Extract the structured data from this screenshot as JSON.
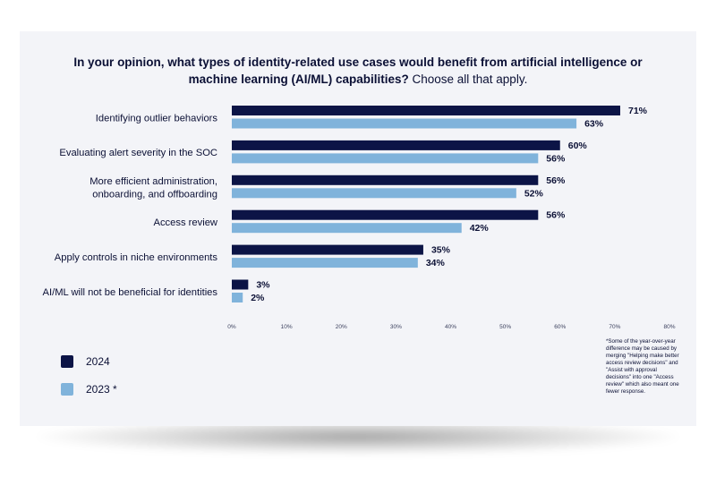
{
  "title_bold": "In your opinion, what types of identity-related use cases would benefit from artificial intelligence or machine learning (AI/ML) capabilities?",
  "title_rest": "Choose all that apply.",
  "footnote": "*Some of the year-over-year difference may be caused by merging \"Helping make better access review decisions\" and \"Assist with approval decisions\" into one \"Access review\" which also meant one fewer response.",
  "colors": {
    "series_2024": "#0c1446",
    "series_2023": "#80b3db"
  },
  "chart_data": {
    "type": "bar",
    "orientation": "horizontal",
    "categories": [
      [
        "Identifying outlier behaviors"
      ],
      [
        "Evaluating alert severity in the SOC"
      ],
      [
        "More efficient administration,",
        "onboarding, and offboarding"
      ],
      [
        "Access review"
      ],
      [
        "Apply controls in niche environments"
      ],
      [
        "AI/ML will not be beneficial for identities"
      ]
    ],
    "series": [
      {
        "name": "2024",
        "values": [
          71,
          60,
          56,
          56,
          35,
          3
        ]
      },
      {
        "name": "2023 *",
        "values": [
          63,
          56,
          52,
          42,
          34,
          2
        ]
      }
    ],
    "value_suffix": "%",
    "xlim": [
      0,
      80
    ],
    "xticks": [
      0,
      10,
      20,
      30,
      40,
      50,
      60,
      70,
      80
    ],
    "grid": false,
    "legend": "bottom-left"
  }
}
